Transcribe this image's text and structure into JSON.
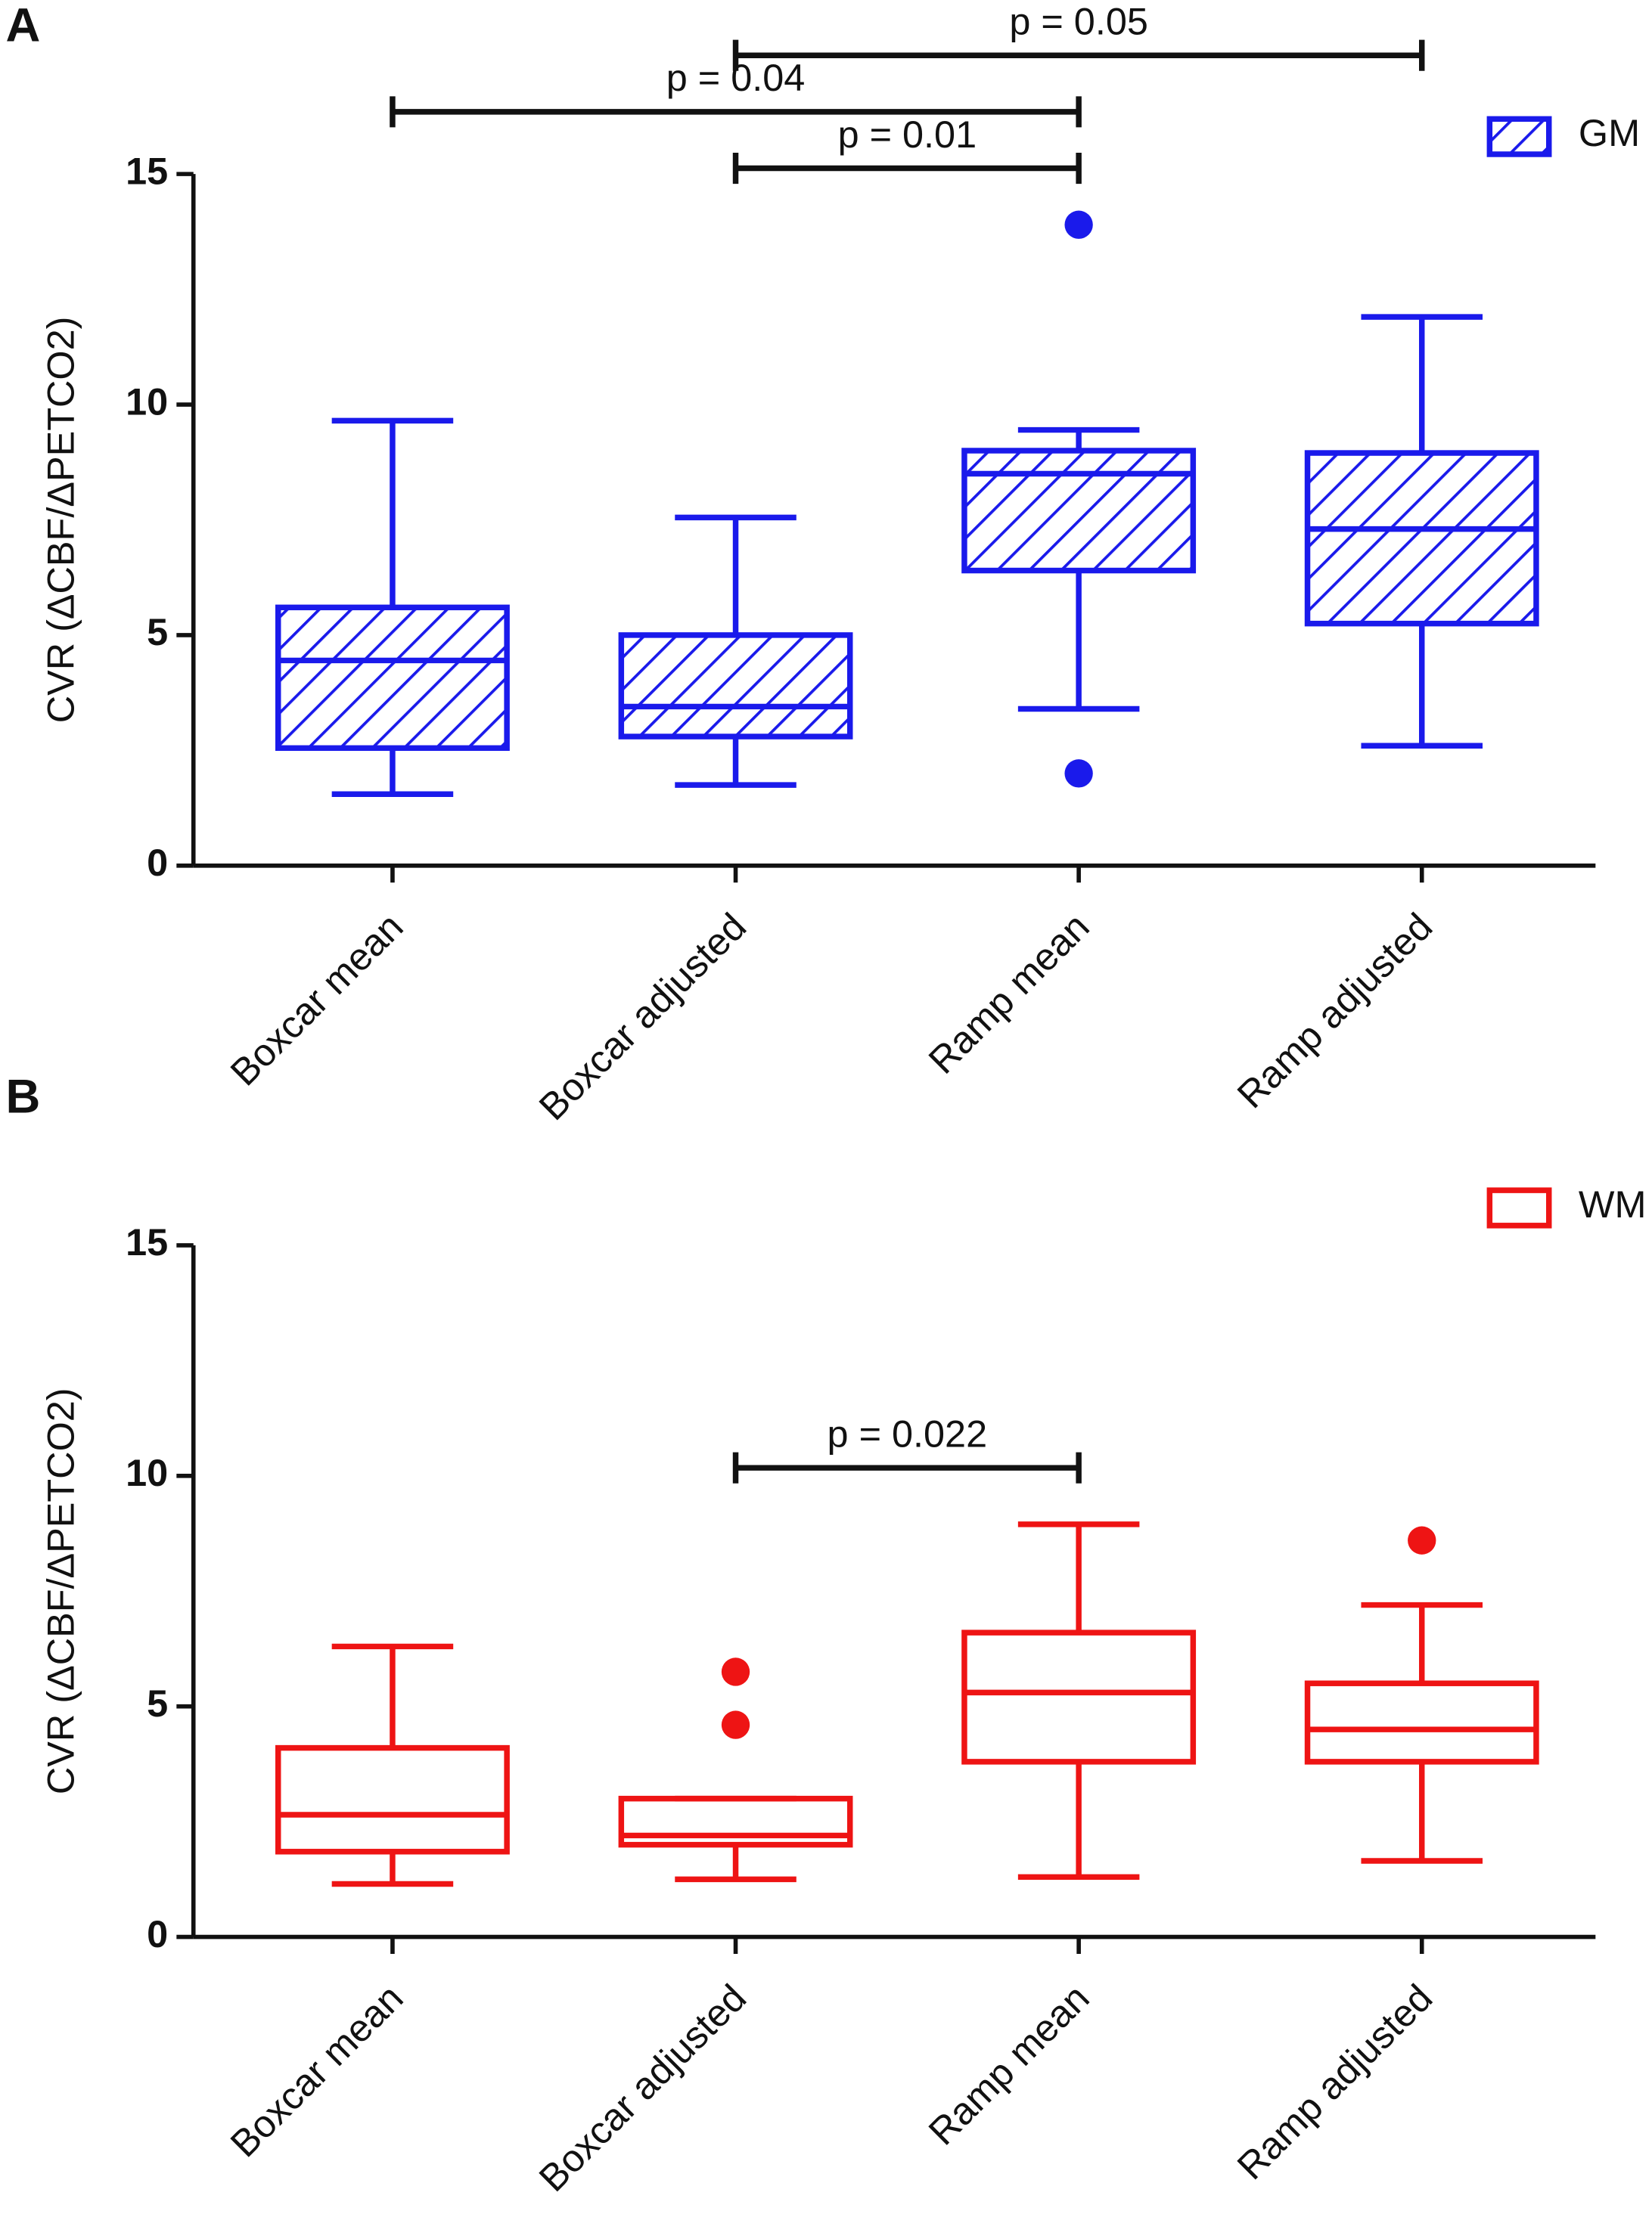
{
  "chart_data": [
    {
      "type": "box",
      "panel": "A",
      "ylabel": "CVR (ΔCBF/ΔPETCO2)",
      "categories": [
        "Boxcar mean",
        "Boxcar adjusted",
        "Ramp mean",
        "Ramp adjusted"
      ],
      "series": [
        {
          "name": "GM",
          "color": "#1a1aeb",
          "hatch": true,
          "boxes": [
            {
              "low": 1.55,
              "q1": 2.55,
              "median": 4.45,
              "q3": 5.6,
              "high": 9.65,
              "outliers": []
            },
            {
              "low": 1.75,
              "q1": 2.8,
              "median": 3.45,
              "q3": 5.0,
              "high": 7.55,
              "outliers": []
            },
            {
              "low": 3.4,
              "q1": 6.4,
              "median": 8.5,
              "q3": 9.0,
              "high": 9.45,
              "outliers": [
                13.9,
                2.0
              ]
            },
            {
              "low": 2.6,
              "q1": 5.25,
              "median": 7.3,
              "q3": 8.95,
              "high": 11.9,
              "outliers": []
            }
          ]
        }
      ],
      "ylim": [
        0,
        15
      ],
      "yticks": [
        0,
        5,
        10,
        15
      ],
      "legend": "upper right",
      "annotations": [
        {
          "text": "p = 0.01",
          "groups": [
            "Boxcar adjusted",
            "Ramp mean"
          ]
        },
        {
          "text": "p = 0.04",
          "groups": [
            "Boxcar mean",
            "Ramp mean"
          ]
        },
        {
          "text": "p = 0.05",
          "groups": [
            "Boxcar adjusted",
            "Ramp adjusted"
          ]
        }
      ]
    },
    {
      "type": "box",
      "panel": "B",
      "ylabel": "CVR (ΔCBF/ΔPETCO2)",
      "categories": [
        "Boxcar mean",
        "Boxcar adjusted",
        "Ramp mean",
        "Ramp adjusted"
      ],
      "series": [
        {
          "name": "WM",
          "color": "#ee1414",
          "hatch": false,
          "boxes": [
            {
              "low": 1.15,
              "q1": 1.85,
              "median": 2.65,
              "q3": 4.1,
              "high": 6.3,
              "outliers": []
            },
            {
              "low": 1.25,
              "q1": 2.0,
              "median": 2.2,
              "q3": 3.0,
              "high": 3.0,
              "outliers": [
                5.75,
                4.6
              ]
            },
            {
              "low": 1.3,
              "q1": 3.8,
              "median": 5.3,
              "q3": 6.6,
              "high": 8.95,
              "outliers": []
            },
            {
              "low": 1.65,
              "q1": 3.8,
              "median": 4.5,
              "q3": 5.5,
              "high": 7.2,
              "outliers": [
                8.6
              ]
            }
          ]
        }
      ],
      "ylim": [
        0,
        15
      ],
      "yticks": [
        0,
        5,
        10,
        15
      ],
      "legend": "upper right",
      "annotations": [
        {
          "text": "p = 0.022",
          "groups": [
            "Boxcar adjusted",
            "Ramp mean"
          ]
        }
      ]
    }
  ]
}
